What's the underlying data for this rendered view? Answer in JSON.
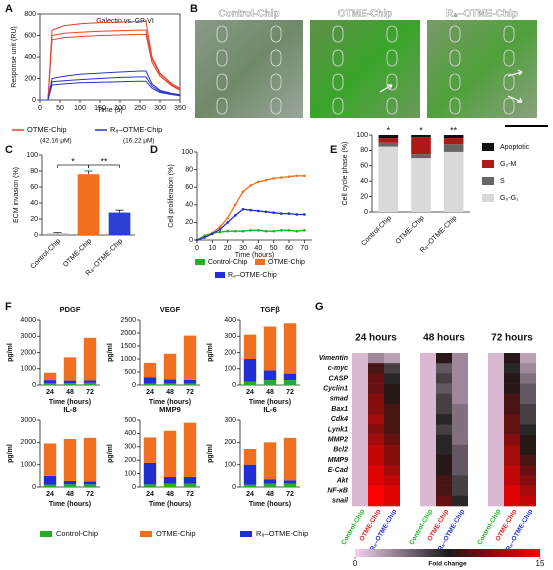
{
  "panel_labels": [
    "A",
    "B",
    "C",
    "D",
    "E",
    "F",
    "G"
  ],
  "images": [
    {
      "title": "Control-Chip"
    },
    {
      "title": "OTME-Chip"
    },
    {
      "title": "R₈–OTME-Chip"
    }
  ],
  "chart_data": [
    {
      "type": "line",
      "title": "Galectin vs. GP-VI",
      "xlabel": "Time (s)",
      "ylabel": "Response unit (RU)",
      "x": [
        0,
        20,
        30,
        60,
        100,
        150,
        200,
        250,
        265,
        280,
        300,
        330,
        350
      ],
      "xlim": [
        0,
        350
      ],
      "xticks": [
        0,
        50,
        100,
        150,
        200,
        250,
        300,
        350
      ],
      "ylim": [
        0,
        800
      ],
      "yticks": [
        0,
        200,
        400,
        600,
        800
      ],
      "series": [
        {
          "name": "OTME-Chip",
          "concentration": "(42.16 μM)",
          "color": "#e8452c",
          "values": [
            0,
            0,
            650,
            690,
            710,
            720,
            725,
            730,
            730,
            400,
            250,
            150,
            110
          ]
        },
        {
          "color": "#e8452c",
          "values": [
            0,
            0,
            600,
            620,
            630,
            640,
            645,
            650,
            650,
            380,
            240,
            140,
            100
          ]
        },
        {
          "color": "#e8452c",
          "values": [
            0,
            0,
            560,
            580,
            590,
            600,
            605,
            610,
            610,
            350,
            220,
            130,
            90
          ]
        },
        {
          "name": "R₈–OTME-Chip",
          "concentration": "(16.22 μM)",
          "color": "#2a35c8",
          "values": [
            0,
            0,
            200,
            220,
            240,
            250,
            260,
            270,
            270,
            150,
            90,
            60,
            50
          ]
        },
        {
          "color": "#2a35c8",
          "values": [
            0,
            0,
            170,
            180,
            190,
            200,
            210,
            215,
            215,
            130,
            80,
            55,
            45
          ]
        },
        {
          "color": "#2a35c8",
          "values": [
            0,
            0,
            140,
            150,
            160,
            165,
            170,
            175,
            175,
            110,
            70,
            50,
            40
          ]
        }
      ]
    },
    {
      "type": "bar",
      "ylabel": "ECM invasion (%)",
      "categories": [
        "Control-Chip",
        "OTME-Chip",
        "R₈–OTME-Chip"
      ],
      "values": [
        2,
        76,
        28
      ],
      "errors": [
        1,
        4,
        3
      ],
      "colors": [
        "#b0b0b0",
        "#f07020",
        "#2a40d0"
      ],
      "ylim": [
        0,
        100
      ],
      "yticks": [
        0,
        20,
        40,
        60,
        80,
        100
      ],
      "annotations": [
        "*",
        "**"
      ]
    },
    {
      "type": "line",
      "xlabel": "Time (hours)",
      "ylabel": "Cell proliferation (%)",
      "x": [
        0,
        5,
        10,
        15,
        20,
        25,
        30,
        35,
        40,
        45,
        50,
        55,
        60,
        65,
        70
      ],
      "xlim": [
        0,
        75
      ],
      "xticks": [
        0,
        10,
        20,
        30,
        40,
        50,
        60,
        70
      ],
      "ylim": [
        0,
        100
      ],
      "yticks": [
        0,
        20,
        40,
        60,
        80,
        100
      ],
      "series": [
        {
          "name": "Control-Chip",
          "color": "#22b022",
          "values": [
            0,
            5,
            8,
            9,
            10,
            10,
            10,
            11,
            11,
            10,
            10,
            11,
            11,
            10,
            11
          ]
        },
        {
          "name": "OTME-Chip",
          "color": "#f07020",
          "values": [
            0,
            3,
            8,
            15,
            25,
            40,
            55,
            62,
            66,
            68,
            70,
            71,
            72,
            73,
            73
          ]
        },
        {
          "name": "R₈–OTME-Chip",
          "color": "#2030d0",
          "values": [
            0,
            3,
            7,
            12,
            20,
            28,
            35,
            34,
            33,
            32,
            31,
            30,
            30,
            29,
            29
          ]
        }
      ]
    },
    {
      "type": "stacked_bar",
      "ylabel": "Cell cycle phase (%)",
      "categories": [
        "Control-Chip",
        "OTME-Chip",
        "R₈–OTME-Chip"
      ],
      "ylim": [
        0,
        100
      ],
      "yticks": [
        0,
        20,
        40,
        60,
        80,
        100
      ],
      "annotations": [
        "*",
        "*",
        "**"
      ],
      "series": [
        {
          "name": "G₀-G₁",
          "color": "#d9d9d9",
          "values": [
            85,
            70,
            78
          ]
        },
        {
          "name": "S",
          "color": "#666666",
          "values": [
            5,
            5,
            10
          ]
        },
        {
          "name": "G₂-M",
          "color": "#b01818",
          "values": [
            6,
            22,
            8
          ]
        },
        {
          "name": "Apoptotic",
          "color": "#111111",
          "values": [
            4,
            3,
            4
          ]
        }
      ]
    },
    {
      "type": "stacked_bar",
      "title": "PDGF",
      "xlabel": "Time (hours)",
      "ylabel": "pg/ml",
      "categories": [
        "24",
        "48",
        "72"
      ],
      "ylim": [
        0,
        4000
      ],
      "yticks": [
        0,
        1000,
        2000,
        3000,
        4000
      ],
      "series": [
        {
          "name": "Control-Chip",
          "color": "#22b022",
          "values": [
            100,
            120,
            130
          ]
        },
        {
          "name": "R₈–OTME-Chip",
          "color": "#2030d0",
          "values": [
            200,
            150,
            150
          ]
        },
        {
          "name": "OTME-Chip",
          "color": "#f07020",
          "values": [
            450,
            1430,
            2620
          ]
        }
      ]
    },
    {
      "type": "stacked_bar",
      "title": "VEGF",
      "xlabel": "Time (hours)",
      "ylabel": "pg/ml",
      "categories": [
        "24",
        "48",
        "72"
      ],
      "ylim": [
        0,
        2500
      ],
      "yticks": [
        0,
        500,
        1000,
        1500,
        2000,
        2500
      ],
      "series": [
        {
          "color": "#22b022",
          "values": [
            50,
            60,
            60
          ]
        },
        {
          "color": "#2030d0",
          "values": [
            250,
            150,
            140
          ]
        },
        {
          "color": "#f07020",
          "values": [
            550,
            990,
            1700
          ]
        }
      ]
    },
    {
      "type": "stacked_bar",
      "title": "TGFβ",
      "xlabel": "Time (hours)",
      "ylabel": "pg/ml",
      "categories": [
        "24",
        "48",
        "72"
      ],
      "ylim": [
        0,
        400
      ],
      "yticks": [
        0,
        100,
        200,
        300,
        400
      ],
      "series": [
        {
          "color": "#22b022",
          "values": [
            20,
            30,
            30
          ]
        },
        {
          "color": "#2030d0",
          "values": [
            140,
            60,
            40
          ]
        },
        {
          "color": "#f07020",
          "values": [
            150,
            270,
            310
          ]
        }
      ]
    },
    {
      "type": "stacked_bar",
      "title": "IL-8",
      "xlabel": "Time (hours)",
      "ylabel": "pg/ml",
      "categories": [
        "24",
        "48",
        "72"
      ],
      "ylim": [
        0,
        3000
      ],
      "yticks": [
        0,
        1000,
        2000,
        3000
      ],
      "series": [
        {
          "color": "#22b022",
          "values": [
            100,
            120,
            120
          ]
        },
        {
          "color": "#2030d0",
          "values": [
            400,
            150,
            130
          ]
        },
        {
          "color": "#f07020",
          "values": [
            1450,
            1880,
            1950
          ]
        }
      ]
    },
    {
      "type": "stacked_bar",
      "title": "MMP9",
      "xlabel": "Time (hours)",
      "ylabel": "pg/ml",
      "categories": [
        "24",
        "48",
        "72"
      ],
      "ylim": [
        0,
        500
      ],
      "yticks": [
        0,
        100,
        200,
        300,
        400,
        500
      ],
      "series": [
        {
          "color": "#22b022",
          "values": [
            20,
            25,
            25
          ]
        },
        {
          "color": "#2030d0",
          "values": [
            160,
            50,
            50
          ]
        },
        {
          "color": "#f07020",
          "values": [
            190,
            345,
            405
          ]
        }
      ]
    },
    {
      "type": "stacked_bar",
      "title": "IL-6",
      "xlabel": "Time (hours)",
      "ylabel": "pg/ml",
      "categories": [
        "24",
        "48",
        "72"
      ],
      "ylim": [
        0,
        300
      ],
      "yticks": [
        0,
        100,
        200,
        300
      ],
      "series": [
        {
          "color": "#22b022",
          "values": [
            10,
            15,
            15
          ]
        },
        {
          "color": "#2030d0",
          "values": [
            90,
            20,
            15
          ]
        },
        {
          "color": "#f07020",
          "values": [
            70,
            165,
            190
          ]
        }
      ]
    },
    {
      "type": "heatmap",
      "rows": [
        "Vimentin",
        "c-myc",
        "CASP",
        "Cyclin1",
        "smad",
        "Bax1",
        "Cdk4",
        "Lynk1",
        "MMP2",
        "Bcl2",
        "MMP9",
        "E-Cad",
        "Akt",
        "NF-κB",
        "snail"
      ],
      "columns": [
        "Control-Chip",
        "OTME-Chip",
        "R₈–OTME-Chip"
      ],
      "column_colors": [
        "#22b022",
        "#e02020",
        "#2030d0"
      ],
      "clim": [
        0,
        15
      ],
      "cticks": [
        0,
        15
      ],
      "colorbar_label": "Fold change",
      "colormap": [
        "#f6d2ee",
        "#1a1a1a",
        "#ff0000"
      ],
      "panels": [
        {
          "title": "24 hours",
          "values": [
            [
              1,
              3,
              2
            ],
            [
              1,
              9,
              6
            ],
            [
              1,
              10,
              7
            ],
            [
              1,
              10,
              8
            ],
            [
              1,
              11,
              8
            ],
            [
              1,
              11,
              9
            ],
            [
              1,
              12,
              9
            ],
            [
              1,
              11,
              9
            ],
            [
              1,
              12,
              10
            ],
            [
              1,
              13,
              11
            ],
            [
              1,
              13,
              11
            ],
            [
              1,
              14,
              12
            ],
            [
              1,
              14,
              13
            ],
            [
              1,
              15,
              14
            ],
            [
              1,
              15,
              14
            ]
          ]
        },
        {
          "title": "48 hours",
          "values": [
            [
              1,
              8,
              3
            ],
            [
              1,
              5,
              3
            ],
            [
              1,
              6,
              3
            ],
            [
              1,
              5,
              3
            ],
            [
              1,
              6,
              3
            ],
            [
              1,
              6,
              4
            ],
            [
              1,
              7,
              4
            ],
            [
              1,
              6,
              4
            ],
            [
              1,
              7,
              4
            ],
            [
              1,
              7,
              5
            ],
            [
              1,
              8,
              5
            ],
            [
              1,
              8,
              5
            ],
            [
              1,
              9,
              6
            ],
            [
              1,
              9,
              6
            ],
            [
              1,
              10,
              7
            ]
          ]
        },
        {
          "title": "72 hours",
          "values": [
            [
              1,
              8,
              2
            ],
            [
              1,
              7,
              3
            ],
            [
              1,
              8,
              4
            ],
            [
              1,
              8,
              5
            ],
            [
              1,
              9,
              5
            ],
            [
              1,
              9,
              6
            ],
            [
              1,
              10,
              6
            ],
            [
              1,
              10,
              7
            ],
            [
              1,
              11,
              8
            ],
            [
              1,
              12,
              8
            ],
            [
              1,
              12,
              9
            ],
            [
              1,
              13,
              10
            ],
            [
              1,
              13,
              11
            ],
            [
              1,
              14,
              12
            ],
            [
              1,
              14,
              13
            ]
          ]
        }
      ]
    }
  ]
}
